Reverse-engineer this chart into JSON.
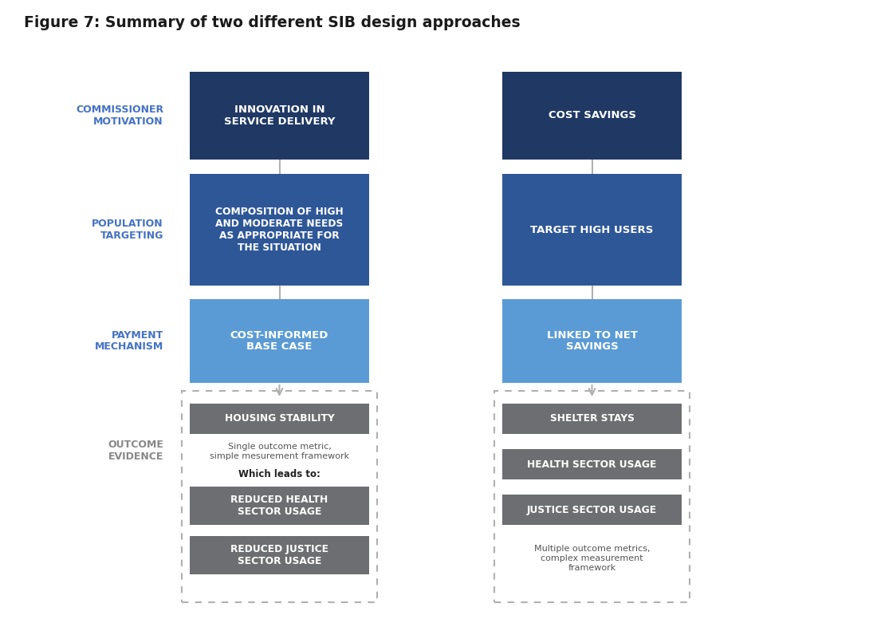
{
  "title": "Figure 7: Summary of two different SIB design approaches",
  "title_color": "#1a1a1a",
  "title_fontsize": 13.5,
  "background_color": "#ffffff",
  "left_label_color": "#4472c4",
  "outcome_label_color": "#888888",
  "row_labels": [
    "COMMISSIONER\nMOTIVATION",
    "POPULATION\nTARGETING",
    "PAYMENT\nMECHANISM",
    "OUTCOME\nEVIDENCE"
  ],
  "col1_boxes": [
    {
      "text": "INNOVATION IN\nSERVICE DELIVERY",
      "color": "#1f3864",
      "text_color": "#ffffff"
    },
    {
      "text": "COMPOSITION OF HIGH\nAND MODERATE NEEDS\nAS APPROPRIATE FOR\nTHE SITUATION",
      "color": "#2e5797",
      "text_color": "#ffffff"
    },
    {
      "text": "COST-INFORMED\nBASE CASE",
      "color": "#5b9bd5",
      "text_color": "#ffffff"
    }
  ],
  "col2_boxes": [
    {
      "text": "COST SAVINGS",
      "color": "#1f3864",
      "text_color": "#ffffff"
    },
    {
      "text": "TARGET HIGH USERS",
      "color": "#2e5797",
      "text_color": "#ffffff"
    },
    {
      "text": "LINKED TO NET\nSAVINGS",
      "color": "#5b9bd5",
      "text_color": "#ffffff"
    }
  ],
  "col1_outcome_boxes": [
    {
      "text": "HOUSING STABILITY",
      "color": "#6d6e71",
      "text_color": "#ffffff"
    },
    {
      "text": "REDUCED HEALTH\nSECTOR USAGE",
      "color": "#6d6e71",
      "text_color": "#ffffff"
    },
    {
      "text": "REDUCED JUSTICE\nSECTOR USAGE",
      "color": "#6d6e71",
      "text_color": "#ffffff"
    }
  ],
  "col2_outcome_boxes": [
    {
      "text": "SHELTER STAYS",
      "color": "#6d6e71",
      "text_color": "#ffffff"
    },
    {
      "text": "HEALTH SECTOR USAGE",
      "color": "#6d6e71",
      "text_color": "#ffffff"
    },
    {
      "text": "JUSTICE SECTOR USAGE",
      "color": "#6d6e71",
      "text_color": "#ffffff"
    }
  ],
  "col1_note": "Single outcome metric,\nsimple mesurement framework",
  "col1_note_bold": "Which leads to:",
  "col2_note": "Multiple outcome metrics,\ncomplex measurement\nframework",
  "arrow_color": "#b0b0b0",
  "dashed_border_color": "#b0b0b0"
}
